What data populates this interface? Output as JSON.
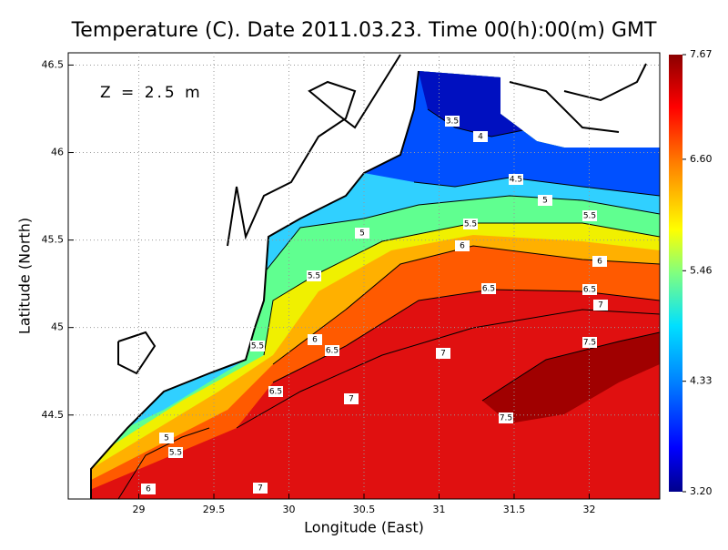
{
  "chart_data": {
    "type": "contour-map",
    "title": "Temperature (C). Date 2011.03.23. Time 00(h):00(m) GMT",
    "annotation": "Z = 2.5 m",
    "x_label": "Longitude (East)",
    "y_label": "Latitude (North)",
    "xlim": [
      28.53,
      32.47
    ],
    "ylim": [
      44.02,
      46.57
    ],
    "xticks": [
      29,
      29.5,
      30,
      30.5,
      31,
      31.5,
      32
    ],
    "yticks": [
      44.5,
      45,
      45.5,
      46,
      46.5
    ],
    "grid": true,
    "colorbar_lim": [
      3.2,
      7.67
    ],
    "colorbar_ticks": [
      {
        "value": 3.2,
        "label": "3.20"
      },
      {
        "value": 4.33,
        "label": "4.33"
      },
      {
        "value": 5.46,
        "label": "5.46"
      },
      {
        "value": 6.6,
        "label": "6.60"
      },
      {
        "value": 7.67,
        "label": "7.67"
      }
    ],
    "contour_labels": [
      3.5,
      4,
      4.5,
      5,
      5.5,
      5,
      5.5,
      6,
      6,
      6.5,
      6.5,
      7,
      5.5,
      6,
      6.5,
      5.5,
      7.5,
      7,
      7,
      6.5,
      7.5,
      5,
      5.5,
      6,
      7
    ]
  }
}
